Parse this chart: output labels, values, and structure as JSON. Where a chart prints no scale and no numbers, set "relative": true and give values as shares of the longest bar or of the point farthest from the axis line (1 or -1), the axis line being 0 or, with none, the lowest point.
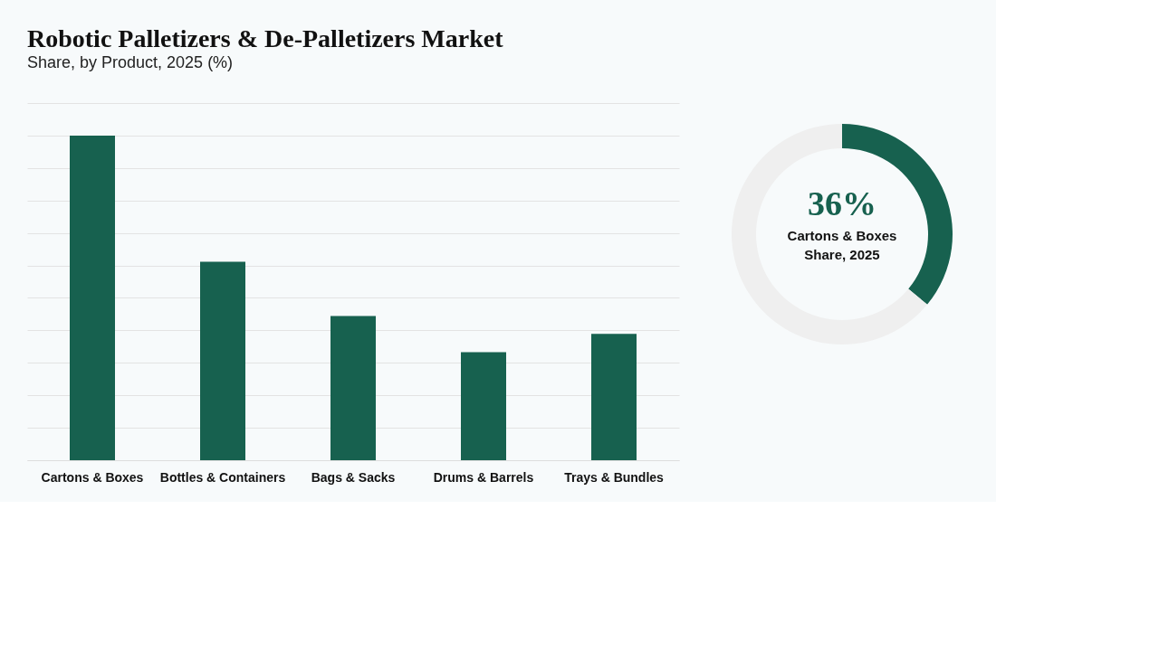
{
  "chart_data": [
    {
      "type": "bar",
      "title": "Robotic Palletizers & De-Palletizers Market",
      "subtitle": "Share, by Product, 2025 (%)",
      "categories": [
        "Cartons & Boxes",
        "Bottles & Containers",
        "Bags & Sacks",
        "Drums & Barrels",
        "Trays & Bundles"
      ],
      "values": [
        1,
        0.611,
        0.444,
        0.333,
        0.389
      ],
      "color": "#17614f",
      "relative": true,
      "grid": "y"
    },
    {
      "type": "donut",
      "categories": [
        null,
        null
      ],
      "values": [
        36,
        64
      ],
      "colors": [
        "#17614f",
        "#efefef"
      ],
      "value_labels": [
        "36%",
        null
      ],
      "annotations": [
        "Cartons & Boxes",
        "Share, 2025"
      ]
    }
  ]
}
